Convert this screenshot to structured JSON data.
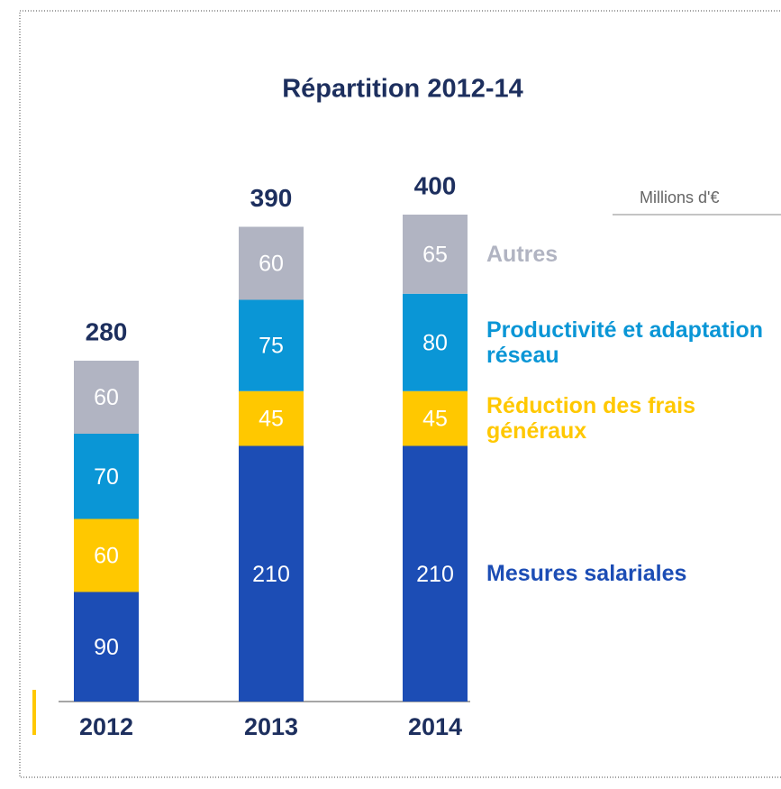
{
  "chart_data": {
    "type": "stacked_bar",
    "title": "Répartition 2012-14",
    "unit": "Millions d'€",
    "categories": [
      "2012",
      "2013",
      "2014"
    ],
    "totals": [
      280,
      390,
      400
    ],
    "series": [
      {
        "name": "Mesures salariales",
        "color": "#1c4db5",
        "values": [
          90,
          210,
          210
        ]
      },
      {
        "name": "Réduction des frais généraux",
        "color": "#ffc800",
        "values": [
          60,
          45,
          45
        ]
      },
      {
        "name": "Productivité et adaptation réseau",
        "color": "#0a96d6",
        "values": [
          70,
          75,
          80
        ]
      },
      {
        "name": "Autres",
        "color": "#b1b4c2",
        "values": [
          60,
          60,
          65
        ]
      }
    ]
  }
}
